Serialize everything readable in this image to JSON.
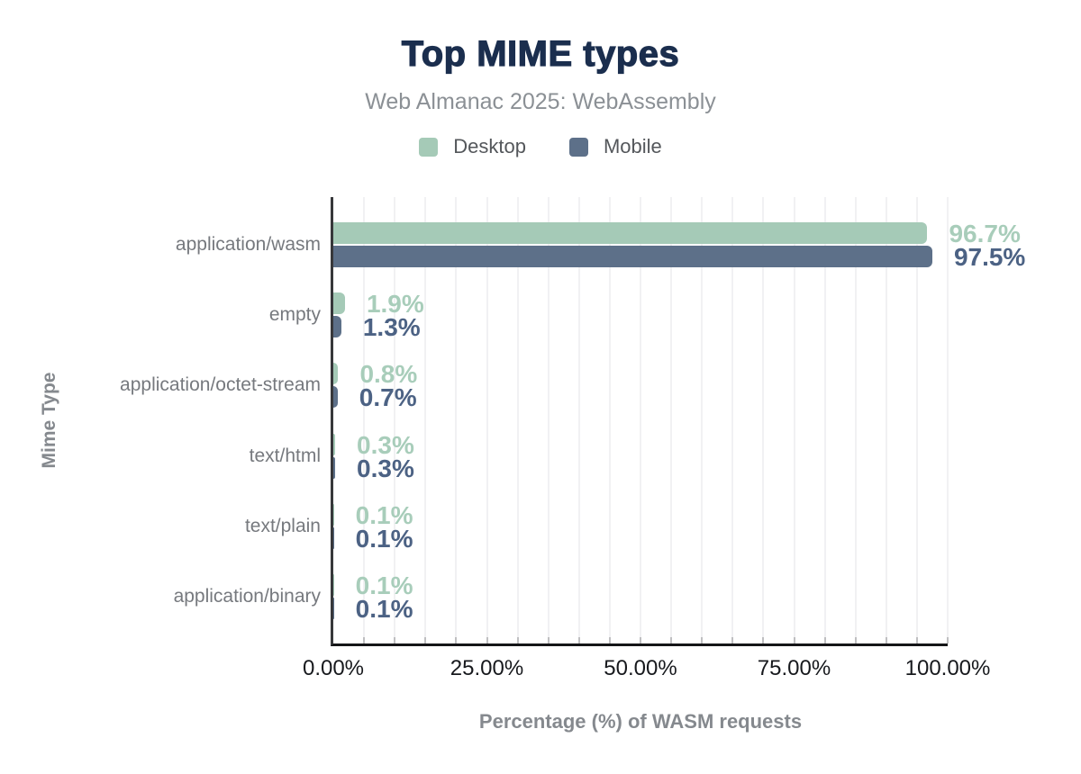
{
  "colors": {
    "title": "#1b2e4e",
    "subtitle": "#8b9095",
    "axis_title": "#85898e",
    "category_label": "#76797e",
    "tick_label": "#17191d",
    "desktop": "#a5cab7",
    "mobile": "#5d7089",
    "desktop_label": "#a8cdba",
    "mobile_label": "#4c6284"
  },
  "chart_data": {
    "type": "bar",
    "orientation": "horizontal",
    "title": "Top MIME types",
    "subtitle": "Web Almanac 2025: WebAssembly",
    "xlabel": "Percentage (%) of WASM requests",
    "ylabel": "Mime Type",
    "categories": [
      "application/wasm",
      "empty",
      "application/octet-stream",
      "text/html",
      "text/plain",
      "application/binary"
    ],
    "series": [
      {
        "name": "Desktop",
        "color": "#a5cab7",
        "label_color": "#a8cdba",
        "values": [
          96.7,
          1.9,
          0.8,
          0.3,
          0.1,
          0.1
        ],
        "labels": [
          "96.7%",
          "1.9%",
          "0.8%",
          "0.3%",
          "0.1%",
          "0.1%"
        ]
      },
      {
        "name": "Mobile",
        "color": "#5d7089",
        "label_color": "#4c6284",
        "values": [
          97.5,
          1.3,
          0.7,
          0.3,
          0.1,
          0.1
        ],
        "labels": [
          "97.5%",
          "1.3%",
          "0.7%",
          "0.3%",
          "0.1%",
          "0.1%"
        ]
      }
    ],
    "xlim": [
      0,
      100
    ],
    "x_ticks": [
      {
        "value": 0,
        "label": "0.00%"
      },
      {
        "value": 25,
        "label": "25.00%"
      },
      {
        "value": 50,
        "label": "50.00%"
      },
      {
        "value": 75,
        "label": "75.00%"
      },
      {
        "value": 100,
        "label": "100.00%"
      }
    ],
    "grid_interval": 5,
    "grid_on": true,
    "legend_position": "top"
  }
}
